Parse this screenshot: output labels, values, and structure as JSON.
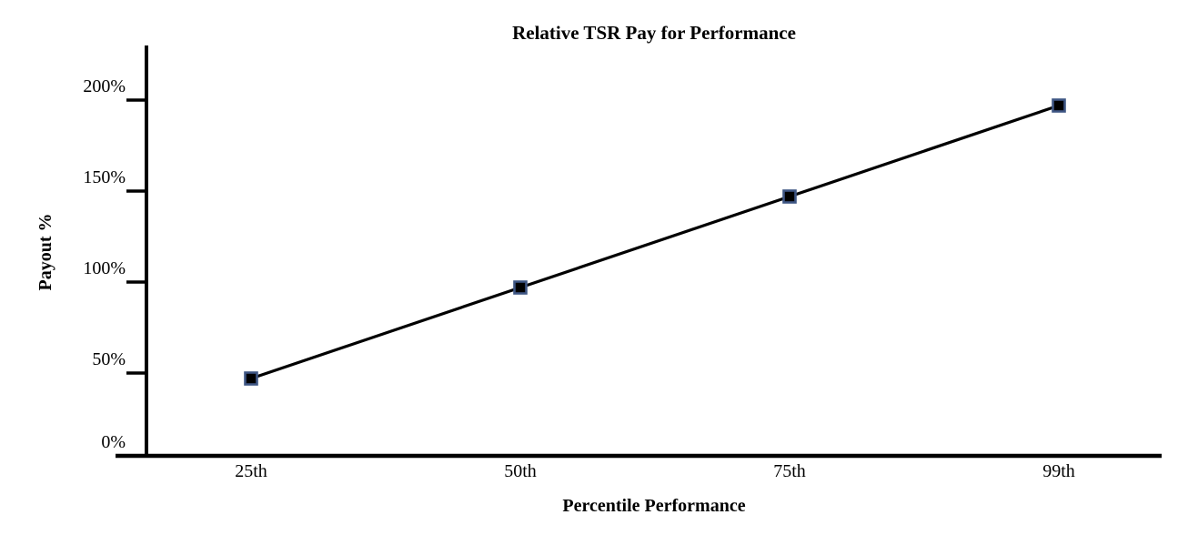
{
  "chart_data": {
    "type": "line",
    "title": "Relative TSR Pay for Performance",
    "xlabel": "Percentile Performance",
    "ylabel": "Payout %",
    "categories": [
      "25th",
      "50th",
      "75th",
      "99th"
    ],
    "series": [
      {
        "name": "Payout %",
        "values": [
          50,
          100,
          150,
          200
        ]
      }
    ],
    "y_tick_labels": [
      "0%",
      "50%",
      "100%",
      "150%",
      "200%"
    ],
    "y_tick_values": [
      0,
      50,
      100,
      150,
      200
    ],
    "ylim": [
      0,
      215
    ],
    "grid": false,
    "legend_position": "none",
    "marker_shape": "square",
    "colors": {
      "line": "#000000",
      "marker_fill": "#000000",
      "marker_border": "#3e5684",
      "axis": "#000000",
      "text": "#000000",
      "background": "#ffffff"
    }
  }
}
